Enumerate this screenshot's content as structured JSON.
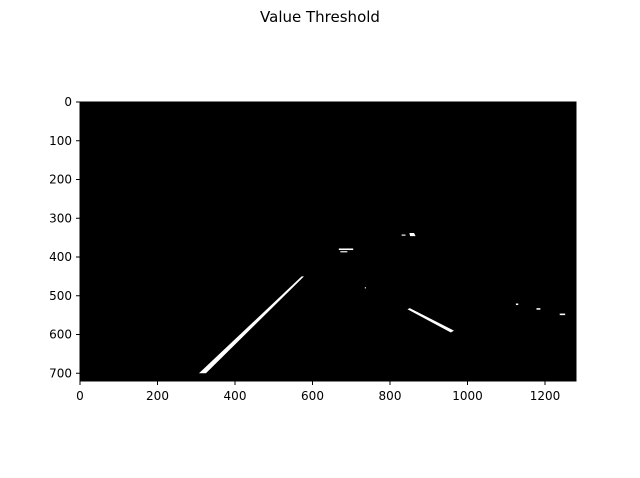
{
  "chart_data": {
    "type": "image",
    "title": "Value Threshold",
    "xlim": [
      0,
      1280
    ],
    "ylim": [
      720,
      0
    ],
    "x_ticks": [
      0,
      200,
      400,
      600,
      800,
      1000,
      1200
    ],
    "y_ticks": [
      0,
      100,
      200,
      300,
      400,
      500,
      600,
      700
    ],
    "x_tick_labels": [
      "0",
      "200",
      "400",
      "600",
      "800",
      "1000",
      "1200"
    ],
    "y_tick_labels": [
      "0",
      "100",
      "200",
      "300",
      "400",
      "500",
      "600",
      "700"
    ],
    "image_background": "#000000",
    "mask_color": "#ffffff",
    "white_regions": [
      {
        "name": "left-lane-line",
        "polygon": [
          [
            307,
            700
          ],
          [
            325,
            700
          ],
          [
            578,
            450
          ],
          [
            572,
            450
          ]
        ]
      },
      {
        "name": "right-lane-dash",
        "polygon": [
          [
            845,
            535
          ],
          [
            851,
            532
          ],
          [
            965,
            590
          ],
          [
            957,
            595
          ]
        ]
      },
      {
        "name": "blob-mid-1",
        "polygon": [
          [
            668,
            378
          ],
          [
            705,
            378
          ],
          [
            705,
            382
          ],
          [
            668,
            382
          ]
        ]
      },
      {
        "name": "blob-mid-2",
        "polygon": [
          [
            672,
            385
          ],
          [
            690,
            385
          ],
          [
            690,
            388
          ],
          [
            672,
            388
          ]
        ]
      },
      {
        "name": "blob-upper-1",
        "polygon": [
          [
            830,
            342
          ],
          [
            840,
            342
          ],
          [
            840,
            345
          ],
          [
            830,
            345
          ]
        ]
      },
      {
        "name": "blob-upper-2",
        "polygon": [
          [
            850,
            338
          ],
          [
            862,
            338
          ],
          [
            866,
            346
          ],
          [
            852,
            346
          ]
        ]
      },
      {
        "name": "blob-far-right-1",
        "polygon": [
          [
            1125,
            520
          ],
          [
            1131,
            520
          ],
          [
            1131,
            524
          ],
          [
            1125,
            524
          ]
        ]
      },
      {
        "name": "blob-far-right-2",
        "polygon": [
          [
            1178,
            532
          ],
          [
            1188,
            532
          ],
          [
            1188,
            536
          ],
          [
            1178,
            536
          ]
        ]
      },
      {
        "name": "blob-far-right-3",
        "polygon": [
          [
            1238,
            546
          ],
          [
            1252,
            546
          ],
          [
            1252,
            550
          ],
          [
            1238,
            550
          ]
        ]
      },
      {
        "name": "speck",
        "polygon": [
          [
            735,
            478
          ],
          [
            738,
            478
          ],
          [
            738,
            481
          ],
          [
            735,
            481
          ]
        ]
      }
    ]
  }
}
